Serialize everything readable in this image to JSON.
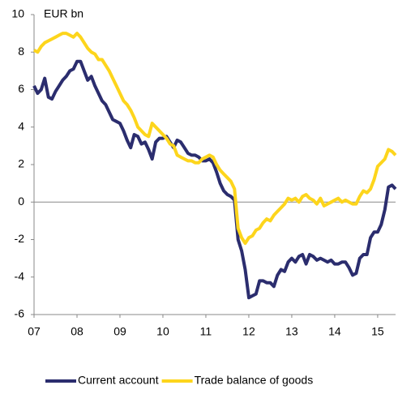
{
  "chart_data": {
    "type": "line",
    "y_label": "EUR bn",
    "categories": [
      "07",
      null,
      null,
      null,
      null,
      null,
      null,
      null,
      null,
      null,
      null,
      null,
      "08",
      null,
      null,
      null,
      null,
      null,
      null,
      null,
      null,
      null,
      null,
      null,
      "09",
      null,
      null,
      null,
      null,
      null,
      null,
      null,
      null,
      null,
      null,
      null,
      "10",
      null,
      null,
      null,
      null,
      null,
      null,
      null,
      null,
      null,
      null,
      null,
      "11",
      null,
      null,
      null,
      null,
      null,
      null,
      null,
      null,
      null,
      null,
      null,
      "12",
      null,
      null,
      null,
      null,
      null,
      null,
      null,
      null,
      null,
      null,
      null,
      "13",
      null,
      null,
      null,
      null,
      null,
      null,
      null,
      null,
      null,
      null,
      null,
      "14",
      null,
      null,
      null,
      null,
      null,
      null,
      null,
      null,
      null,
      null,
      null,
      "15",
      null,
      null,
      null,
      null,
      null
    ],
    "series": [
      {
        "name": "Current account",
        "color": "#2b2d6e",
        "values": [
          6.2,
          5.8,
          6.0,
          6.6,
          5.6,
          5.5,
          5.9,
          6.2,
          6.5,
          6.7,
          7.0,
          7.1,
          7.5,
          7.5,
          7.0,
          6.5,
          6.7,
          6.2,
          5.8,
          5.4,
          5.2,
          4.8,
          4.4,
          4.3,
          4.2,
          3.8,
          3.3,
          2.9,
          3.6,
          3.5,
          3.1,
          3.2,
          2.8,
          2.3,
          3.2,
          3.4,
          3.4,
          3.5,
          3.2,
          2.9,
          3.3,
          3.2,
          2.9,
          2.6,
          2.5,
          2.5,
          2.4,
          2.2,
          2.2,
          2.3,
          2.1,
          1.6,
          1.0,
          0.6,
          0.4,
          0.3,
          0.1,
          -2.0,
          -2.6,
          -3.6,
          -5.1,
          -5.0,
          -4.9,
          -4.2,
          -4.2,
          -4.3,
          -4.3,
          -4.5,
          -3.9,
          -3.6,
          -3.7,
          -3.2,
          -3.0,
          -3.2,
          -2.9,
          -2.8,
          -3.3,
          -2.8,
          -2.9,
          -3.1,
          -3.0,
          -3.1,
          -3.2,
          -3.1,
          -3.3,
          -3.3,
          -3.2,
          -3.2,
          -3.5,
          -3.9,
          -3.8,
          -3.0,
          -2.8,
          -2.8,
          -1.9,
          -1.6,
          -1.6,
          -1.2,
          -0.4,
          0.8,
          0.9,
          0.7
        ]
      },
      {
        "name": "Trade balance of goods",
        "color": "#fdd51c",
        "values": [
          8.1,
          8.0,
          8.3,
          8.5,
          8.6,
          8.7,
          8.8,
          8.9,
          9.0,
          9.0,
          8.9,
          8.8,
          9.0,
          8.8,
          8.5,
          8.2,
          8.0,
          7.9,
          7.6,
          7.6,
          7.3,
          7.0,
          6.6,
          6.2,
          5.8,
          5.4,
          5.2,
          4.9,
          4.5,
          4.0,
          3.8,
          3.6,
          3.5,
          4.2,
          4.0,
          3.8,
          3.6,
          3.4,
          3.1,
          3.0,
          2.5,
          2.4,
          2.3,
          2.2,
          2.2,
          2.1,
          2.1,
          2.3,
          2.4,
          2.5,
          2.4,
          2.0,
          1.7,
          1.5,
          1.3,
          1.1,
          0.7,
          -1.4,
          -1.9,
          -2.2,
          -1.9,
          -1.8,
          -1.5,
          -1.4,
          -1.1,
          -0.9,
          -1.0,
          -0.7,
          -0.5,
          -0.3,
          -0.1,
          0.2,
          0.1,
          0.2,
          0.0,
          0.3,
          0.4,
          0.2,
          0.1,
          -0.1,
          0.2,
          -0.2,
          -0.1,
          0.0,
          0.1,
          0.2,
          0.0,
          0.1,
          0.0,
          -0.1,
          -0.1,
          0.3,
          0.6,
          0.5,
          0.7,
          1.2,
          1.9,
          2.1,
          2.3,
          2.8,
          2.7,
          2.5
        ]
      }
    ],
    "ylim": [
      -6,
      10
    ],
    "yticks": [
      -6,
      -4,
      -2,
      0,
      2,
      4,
      6,
      8,
      10
    ],
    "legend": "bottom"
  }
}
